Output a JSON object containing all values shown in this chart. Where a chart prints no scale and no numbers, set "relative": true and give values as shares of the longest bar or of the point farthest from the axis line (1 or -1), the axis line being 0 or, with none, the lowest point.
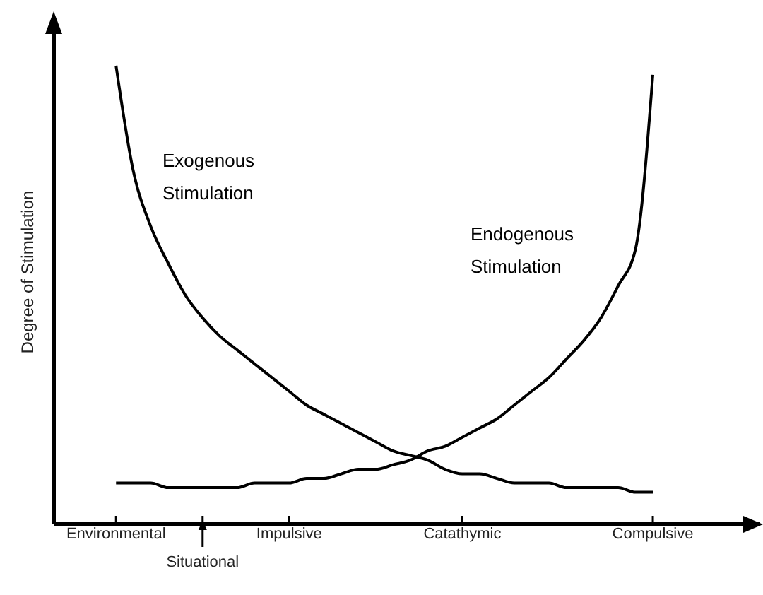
{
  "chart_data": {
    "type": "line",
    "relative": true,
    "ylabel": "Degree of Stimulation",
    "categories": [
      "Environmental",
      null,
      null,
      null,
      null,
      "Situational",
      null,
      null,
      null,
      null,
      "Impulsive",
      null,
      null,
      null,
      null,
      null,
      null,
      null,
      null,
      null,
      "Catathymic",
      null,
      null,
      null,
      null,
      null,
      null,
      null,
      null,
      null,
      null,
      "Compulsive"
    ],
    "marker": "none",
    "line_style": "solid",
    "series": [
      {
        "name": "Exogenous Stimulation",
        "color": "#000000",
        "values": [
          1,
          0.77,
          0.65,
          0.57,
          0.5,
          0.45,
          0.41,
          0.38,
          0.35,
          0.32,
          0.29,
          0.26,
          0.24,
          0.22,
          0.2,
          0.18,
          0.16,
          0.15,
          0.14,
          0.12,
          0.11,
          0.11,
          0.1,
          0.09,
          0.09,
          0.09,
          0.08,
          0.08,
          0.08,
          0.08,
          0.07,
          0.07
        ]
      },
      {
        "name": "Endogenous Stimulation",
        "color": "#000000",
        "values": [
          0.09,
          0.09,
          0.09,
          0.08,
          0.08,
          0.08,
          0.08,
          0.08,
          0.09,
          0.09,
          0.09,
          0.1,
          0.1,
          0.11,
          0.12,
          0.12,
          0.13,
          0.14,
          0.16,
          0.17,
          0.19,
          0.21,
          0.23,
          0.26,
          0.29,
          0.32,
          0.36,
          0.4,
          0.45,
          0.52,
          0.6,
          0.98
        ]
      }
    ]
  }
}
